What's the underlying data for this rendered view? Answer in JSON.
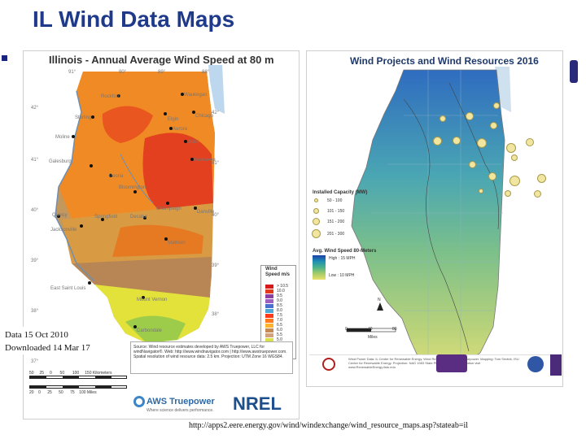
{
  "slide": {
    "title": "IL Wind Data Maps"
  },
  "left_map": {
    "title": "Illinois - Annual Average Wind Speed at 80 m",
    "coords_top": [
      "91°",
      "90°",
      "89°",
      "88°"
    ],
    "coords_left": [
      "42°",
      "41°",
      "40°",
      "39°",
      "38°",
      "37°"
    ],
    "coords_right": [
      "42°",
      "41°",
      "40°",
      "39°",
      "38°"
    ],
    "cities": [
      "Rockford",
      "Waukegan",
      "Elgin",
      "Chicago",
      "Sterling",
      "Aurora",
      "Joliet",
      "Moline",
      "Kankakee",
      "Galesburg",
      "Peoria",
      "Bloomington",
      "Quincy",
      "Springfield",
      "Decatur",
      "Champaign",
      "Danville",
      "Jacksonville",
      "Mattoon",
      "East Saint Louis",
      "Mount Vernon",
      "Carbondale"
    ],
    "legend": {
      "title": "Wind Speed m/s",
      "items": [
        {
          "label": "> 10.5",
          "color": "#d7191c"
        },
        {
          "label": "10.0",
          "color": "#e43a1c"
        },
        {
          "label": "9.5",
          "color": "#8b3fa0"
        },
        {
          "label": "9.0",
          "color": "#a05fc0"
        },
        {
          "label": "8.5",
          "color": "#4a6fd0"
        },
        {
          "label": "8.0",
          "color": "#4fa8d8"
        },
        {
          "label": "7.5",
          "color": "#ff3a1a"
        },
        {
          "label": "7.0",
          "color": "#ff7a1a"
        },
        {
          "label": "6.5",
          "color": "#ffb32a"
        },
        {
          "label": "6.0",
          "color": "#c48a52"
        },
        {
          "label": "5.5",
          "color": "#d4a27a"
        },
        {
          "label": "5.0",
          "color": "#d8e04a"
        },
        {
          "label": "4.5",
          "color": "#f2f23a"
        },
        {
          "label": "4.0",
          "color": "#9ccc4a"
        },
        {
          "label": "< 4.0",
          "color": "#3f9a3a"
        }
      ]
    },
    "source_text": "Source: Wind resource estimates developed by AWS Truepower, LLC for windNavigator®. Web: http://www.windnavigator.com | http://www.awstruepower.com. Spatial resolution of wind resource data: 2.5 km. Projection: UTM Zone 16 WGS84.",
    "scale_km": [
      "50",
      "25",
      "0",
      "50",
      "100",
      "150 Kilometers"
    ],
    "scale_mi": [
      "20",
      "0",
      "25",
      "50",
      "75",
      "100 Miles"
    ],
    "logo_aws": "AWS Truepower",
    "logo_aws_sub": "Where science delivers performance.",
    "logo_nrel": "NREL",
    "note_line1": "Data 15 Oct 2010",
    "note_line2": "Downloaded 14 Mar 17"
  },
  "right_map": {
    "title": "Wind Projects and Wind Resources 2016",
    "capacity_title": "Installed Capacity (MW)",
    "capacity_items": [
      "50 - 100",
      "101 - 150",
      "151 - 200",
      "201 - 300"
    ],
    "windspeed_title": "Avg. Wind Speed 80-Meters",
    "windspeed_high": "High : 15 MPH",
    "windspeed_low": "Low : 10 MPH",
    "scale_labels": [
      "0",
      "40",
      "80"
    ],
    "scale_unit": "Miles",
    "north": "N",
    "credits": "Wind Power Data: IL Center for Renewable Energy. Wind Resource Data: AWS Truepower. Mapping: Tom Sirotek, ISU Center for Renewable Energy. Projection: NAD 1983 State Plane. For more information visit www.RenewableEnergy.ilstu.edu"
  },
  "footer": {
    "url": "http://apps2.eere.energy.gov/wind/windexchange/wind_resource_maps.asp?stateab=il"
  },
  "colors": {
    "title": "#1f3a8a"
  }
}
